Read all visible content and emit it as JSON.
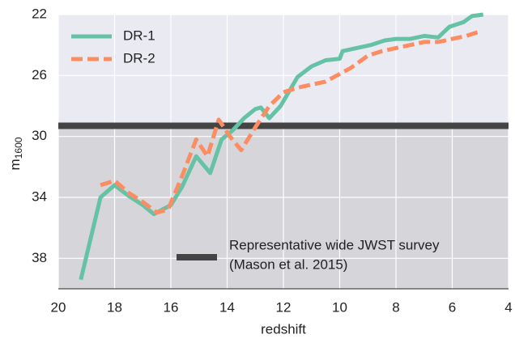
{
  "chart_data": {
    "type": "line",
    "xlabel": "redshift",
    "ylabel": "m",
    "ylabel_sub": "1600",
    "xlim": [
      20,
      4
    ],
    "xticks": [
      20,
      18,
      16,
      14,
      12,
      10,
      8,
      6,
      4
    ],
    "ylim": [
      40,
      22
    ],
    "yticks": [
      22,
      26,
      30,
      34,
      38
    ],
    "grid": true,
    "legend": "upper left",
    "series": [
      {
        "name": "DR-1",
        "color": "#66c2a5",
        "dash": false,
        "x": [
          19.2,
          18.5,
          18.0,
          17.5,
          17.0,
          16.6,
          16.0,
          15.6,
          15.1,
          14.6,
          14.2,
          13.8,
          13.4,
          13.0,
          12.8,
          12.5,
          12.1,
          11.5,
          11.0,
          10.5,
          10.0,
          9.9,
          9.4,
          8.9,
          8.4,
          8.0,
          7.5,
          7.0,
          6.5,
          6.1,
          5.6,
          5.3,
          4.9
        ],
        "values": [
          39.4,
          34.0,
          33.2,
          33.9,
          34.5,
          35.1,
          34.5,
          33.3,
          31.3,
          32.4,
          30.2,
          29.6,
          28.8,
          28.2,
          28.1,
          28.8,
          28.0,
          26.1,
          25.4,
          25.0,
          24.9,
          24.4,
          24.2,
          24.0,
          23.7,
          23.6,
          23.6,
          23.4,
          23.5,
          22.8,
          22.5,
          22.1,
          22.0
        ]
      },
      {
        "name": "DR-2",
        "color": "#fc8d62",
        "dash": true,
        "x": [
          18.5,
          18.0,
          17.5,
          17.0,
          16.5,
          16.1,
          15.6,
          15.1,
          14.7,
          14.3,
          13.9,
          13.5,
          13.0,
          12.5,
          12.0,
          11.5,
          11.0,
          10.5,
          10.0,
          9.6,
          9.0,
          8.5,
          8.0,
          7.5,
          7.0,
          6.5,
          6.0,
          5.5,
          5.0
        ],
        "values": [
          33.2,
          32.9,
          33.7,
          34.3,
          35.0,
          34.8,
          32.6,
          30.2,
          31.3,
          28.9,
          30.0,
          30.9,
          29.4,
          28.0,
          27.1,
          26.8,
          26.6,
          26.4,
          25.9,
          25.5,
          24.7,
          24.4,
          24.2,
          24.0,
          23.8,
          23.8,
          23.6,
          23.4,
          23.1
        ]
      }
    ],
    "reference": {
      "name": "Representative wide JWST survey",
      "note": "(Mason et al. 2015)",
      "value": 29.3,
      "color": "#444444",
      "shade": "#d5d5da"
    }
  }
}
